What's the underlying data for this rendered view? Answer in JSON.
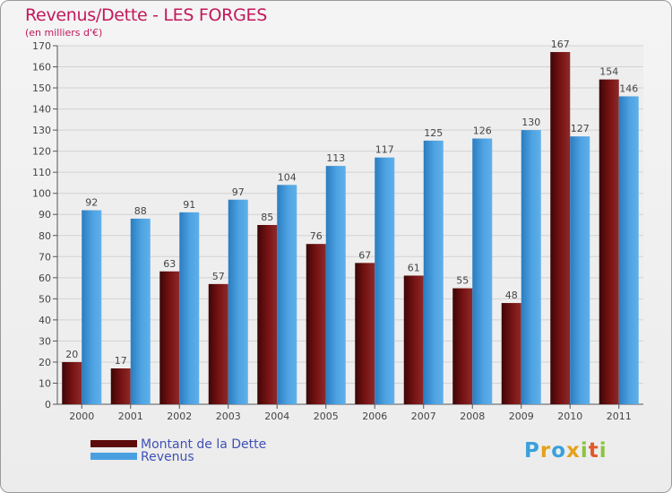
{
  "chart_data": {
    "type": "bar",
    "title": "Revenus/Dette - LES FORGES",
    "subtitle": "(en milliers d'€)",
    "categories": [
      "2000",
      "2001",
      "2002",
      "2003",
      "2004",
      "2005",
      "2006",
      "2007",
      "2008",
      "2009",
      "2010",
      "2011"
    ],
    "series": [
      {
        "name": "Montant de la Dette",
        "color": "#7a0e0e",
        "values": [
          20,
          17,
          63,
          57,
          85,
          76,
          67,
          61,
          55,
          48,
          167,
          154
        ]
      },
      {
        "name": "Revenus",
        "color": "#4a9fe0",
        "values": [
          92,
          88,
          91,
          97,
          104,
          113,
          117,
          125,
          126,
          130,
          127,
          146
        ]
      }
    ],
    "ylim": [
      0,
      170
    ],
    "yticks": [
      0,
      10,
      20,
      30,
      40,
      50,
      60,
      70,
      80,
      90,
      100,
      110,
      120,
      130,
      140,
      150,
      160,
      170
    ],
    "grid": true,
    "legend_position": "bottom-left"
  },
  "logo": {
    "text": "Proxiti",
    "letters": [
      {
        "ch": "P",
        "color": "#3aa0dc"
      },
      {
        "ch": "r",
        "color": "#e3a21a"
      },
      {
        "ch": "o",
        "color": "#3aa0dc"
      },
      {
        "ch": "x",
        "color": "#e3a21a"
      },
      {
        "ch": "i",
        "color": "#8bc43f"
      },
      {
        "ch": "t",
        "color": "#e05a2a"
      },
      {
        "ch": "i",
        "color": "#8bc43f"
      }
    ]
  }
}
